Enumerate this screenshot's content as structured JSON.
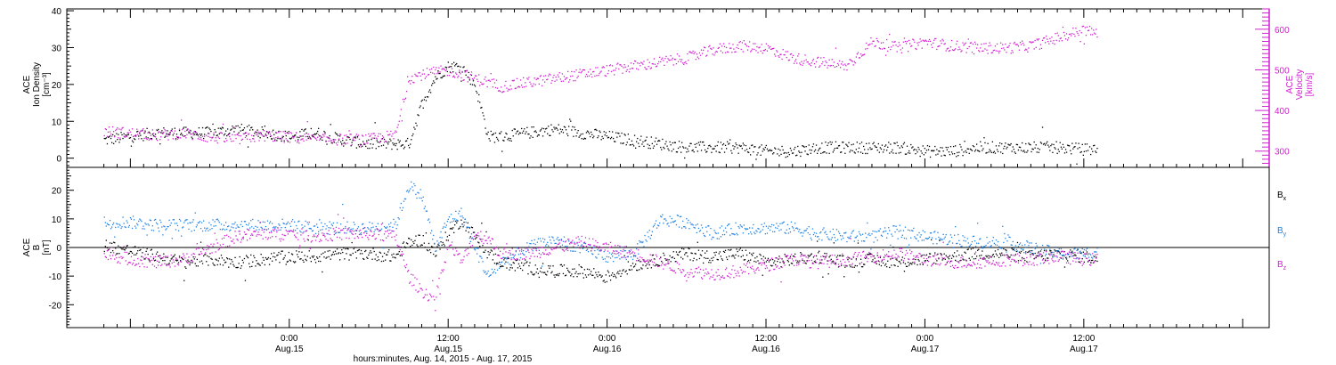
{
  "chart_data": [
    {
      "type": "scatter",
      "panel": "top",
      "ylabel_left": [
        "ACE",
        "Ion Density",
        "[cm⁻³]"
      ],
      "ylabel_right": [
        "ACE",
        "Velocity",
        "[km/s]"
      ],
      "ylim_left": [
        -2.5,
        40.5
      ],
      "ylim_right": [
        260,
        650
      ],
      "yticks_left": [
        0,
        10,
        20,
        30,
        40
      ],
      "yticks_right": [
        300,
        400,
        500,
        600
      ],
      "series": [
        {
          "name": "Ion Density",
          "axis": "left",
          "color": "#000000",
          "x": [
            -14,
            -12,
            -10,
            -8,
            -6,
            -4,
            -2,
            0,
            2,
            4,
            6,
            8,
            9,
            10,
            11,
            12,
            13,
            14,
            15,
            16,
            18,
            20,
            22,
            24,
            26,
            28,
            30,
            32,
            34,
            36,
            38,
            40,
            42,
            44,
            46,
            48,
            50,
            52,
            54,
            56,
            58,
            60,
            61
          ],
          "y": [
            5,
            6,
            7,
            7,
            7,
            8,
            7,
            6,
            7,
            5,
            4,
            4,
            4,
            15,
            22,
            25,
            25,
            20,
            6,
            6,
            7,
            8,
            7,
            6,
            5,
            4,
            3,
            3,
            3,
            2,
            2,
            3,
            3,
            3,
            3,
            2,
            2,
            3,
            3,
            3,
            3,
            2.5,
            2.5
          ]
        },
        {
          "name": "Velocity",
          "axis": "right",
          "color": "#d21ed2",
          "x": [
            -14,
            -12,
            -10,
            -8,
            -6,
            -4,
            -2,
            0,
            2,
            4,
            6,
            8,
            9,
            10,
            12,
            14,
            16,
            18,
            20,
            22,
            24,
            26,
            28,
            30,
            32,
            34,
            36,
            38,
            40,
            42,
            44,
            46,
            48,
            50,
            52,
            54,
            56,
            58,
            60,
            61
          ],
          "y": [
            350,
            345,
            340,
            345,
            335,
            330,
            340,
            335,
            330,
            330,
            330,
            340,
            480,
            490,
            500,
            480,
            460,
            470,
            480,
            490,
            500,
            510,
            520,
            530,
            550,
            560,
            555,
            530,
            520,
            510,
            570,
            555,
            570,
            560,
            555,
            555,
            560,
            580,
            600,
            590
          ]
        }
      ]
    },
    {
      "type": "scatter",
      "panel": "bottom",
      "ylabel_left": [
        "ACE",
        "B",
        "[nT]"
      ],
      "ylim": [
        -28,
        28
      ],
      "yticks": [
        -20,
        -10,
        0,
        10,
        20
      ],
      "legend_position": "right",
      "series": [
        {
          "name": "Bx",
          "name_main": "B",
          "name_sub": "x",
          "color": "#000000",
          "x": [
            -14,
            -12,
            -10,
            -8,
            -6,
            -4,
            -2,
            0,
            2,
            4,
            6,
            8,
            9,
            10,
            11,
            12,
            13,
            14,
            15,
            16,
            18,
            20,
            22,
            24,
            26,
            28,
            30,
            32,
            34,
            36,
            38,
            40,
            42,
            44,
            46,
            48,
            50,
            52,
            54,
            56,
            58,
            60,
            61
          ],
          "y": [
            1,
            -1,
            -3,
            -5,
            -4,
            -5,
            -4,
            -3,
            -3,
            -2,
            -2,
            -3,
            2,
            3,
            -2,
            5,
            10,
            4,
            -2,
            -5,
            -7,
            -8,
            -8,
            -10,
            -6,
            -4,
            -2,
            -3,
            -2,
            -5,
            -4,
            -3,
            -5,
            -4,
            -5,
            -4,
            -3,
            -2,
            -2,
            -3,
            -2,
            -3,
            -4
          ]
        },
        {
          "name": "By",
          "name_main": "B",
          "name_sub": "y",
          "color": "#1e82e6",
          "x": [
            -14,
            -12,
            -10,
            -8,
            -6,
            -4,
            -2,
            0,
            2,
            4,
            6,
            8,
            9,
            10,
            11,
            12,
            13,
            14,
            15,
            16,
            18,
            20,
            22,
            24,
            26,
            28,
            30,
            32,
            34,
            36,
            38,
            40,
            42,
            44,
            46,
            48,
            50,
            52,
            54,
            56,
            58,
            60,
            61
          ],
          "y": [
            9,
            9,
            8,
            8,
            8,
            8,
            8,
            8,
            7,
            7,
            7,
            8,
            22,
            18,
            0,
            10,
            12,
            0,
            -10,
            -5,
            0,
            3,
            0,
            -3,
            -2,
            10,
            9,
            5,
            7,
            7,
            7,
            5,
            4,
            4,
            6,
            4,
            3,
            2,
            2,
            0,
            -2,
            -2,
            -1
          ]
        },
        {
          "name": "Bz",
          "name_main": "B",
          "name_sub": "z",
          "color": "#d21ed2",
          "x": [
            -14,
            -12,
            -10,
            -8,
            -6,
            -4,
            -2,
            0,
            2,
            4,
            6,
            8,
            9,
            10,
            11,
            12,
            13,
            14,
            15,
            16,
            18,
            20,
            22,
            24,
            26,
            28,
            30,
            32,
            34,
            36,
            38,
            40,
            42,
            44,
            46,
            48,
            50,
            52,
            54,
            56,
            58,
            60,
            61
          ],
          "y": [
            -2,
            -4,
            -5,
            -4,
            0,
            4,
            5,
            5,
            4,
            5,
            5,
            4,
            -10,
            -15,
            -18,
            2,
            -5,
            5,
            3,
            -2,
            -2,
            0,
            2,
            0,
            -2,
            -5,
            -8,
            -9,
            -8,
            -6,
            -4,
            -5,
            -4,
            -3,
            -2,
            -4,
            -5,
            -5,
            -4,
            -4,
            -3,
            -4,
            -4
          ]
        }
      ]
    }
  ],
  "x_axis": {
    "xlim": [
      -16.8,
      74
    ],
    "ticks": [
      {
        "x": 0,
        "time": "0:00",
        "date": "Aug.15"
      },
      {
        "x": 12,
        "time": "12:00",
        "date": "Aug.15"
      },
      {
        "x": 24,
        "time": "0:00",
        "date": "Aug.16"
      },
      {
        "x": 36,
        "time": "12:00",
        "date": "Aug.16"
      },
      {
        "x": 48,
        "time": "0:00",
        "date": "Aug.17"
      },
      {
        "x": 60,
        "time": "12:00",
        "date": "Aug.17"
      }
    ],
    "label": "hours:minutes, Aug. 14, 2015 - Aug. 17, 2015"
  },
  "colors": {
    "black": "#000000",
    "magenta": "#d21ed2",
    "blue": "#1e82e6"
  }
}
